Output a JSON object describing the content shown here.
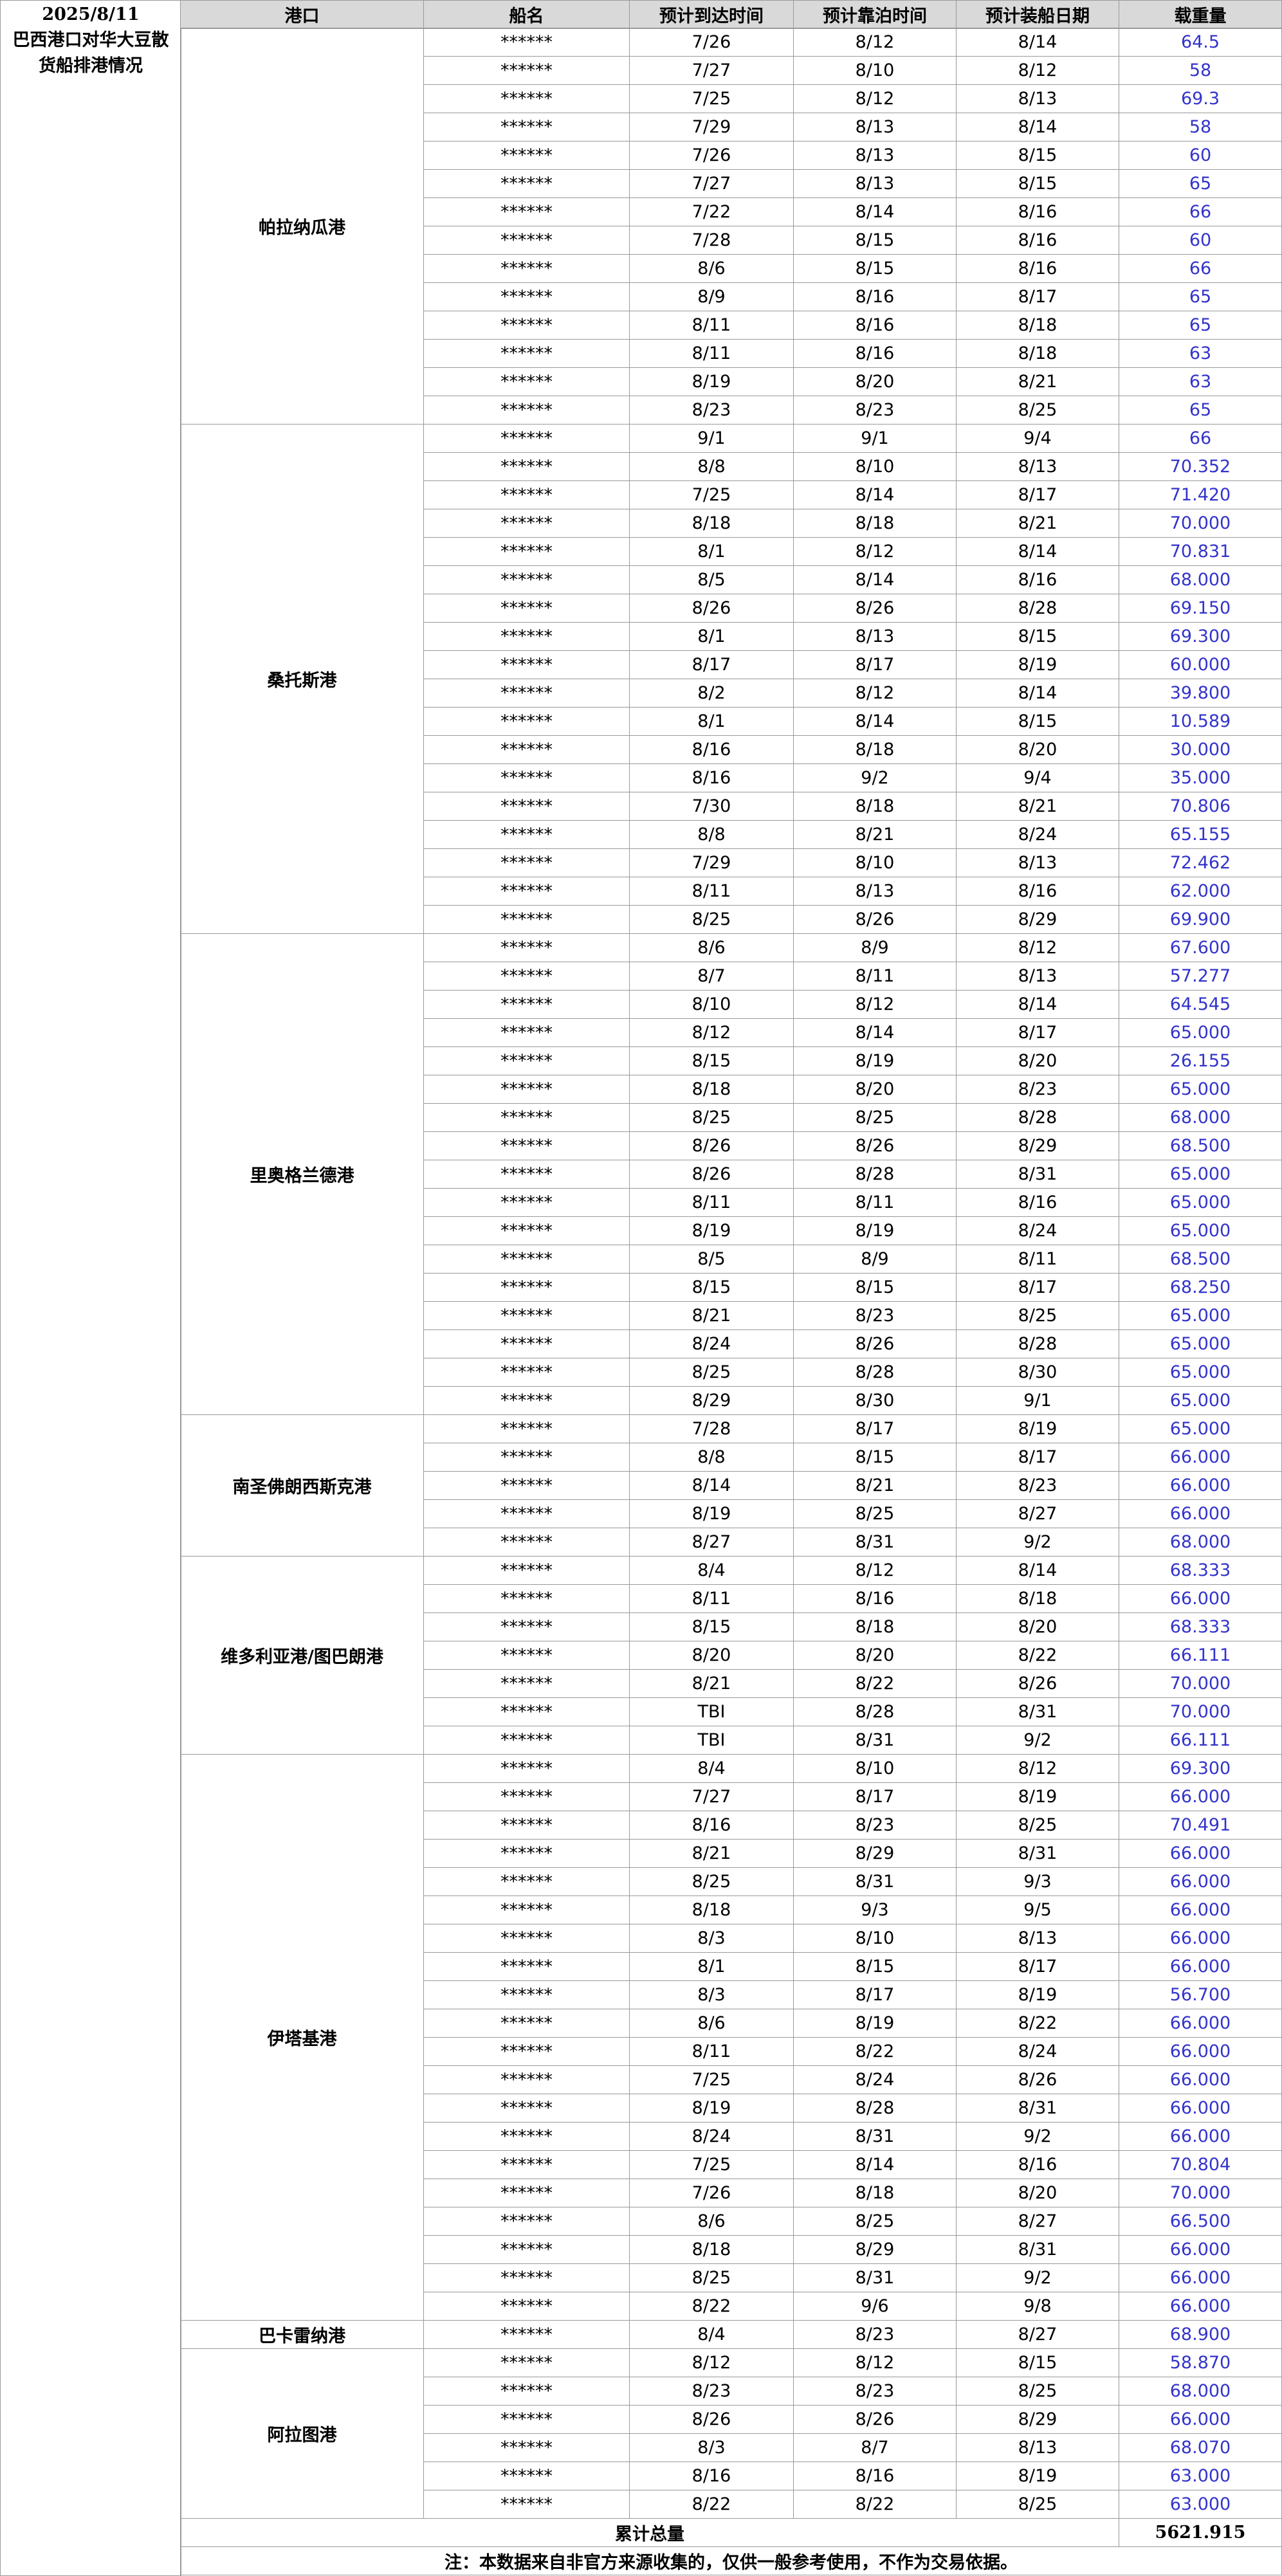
{
  "header": {
    "date": "2025/8/11",
    "title": "巴西港口对华大豆散货船排港情况"
  },
  "table": {
    "columns": [
      "港口",
      "船名",
      "预计到达时间",
      "预计靠泊时间",
      "预计装船日期",
      "载重量"
    ],
    "groups": [
      {
        "port": "帕拉纳瓜港",
        "rows": [
          [
            "******",
            "7/26",
            "8/12",
            "8/14",
            "64.5"
          ],
          [
            "******",
            "7/27",
            "8/10",
            "8/12",
            "58"
          ],
          [
            "******",
            "7/25",
            "8/12",
            "8/13",
            "69.3"
          ],
          [
            "******",
            "7/29",
            "8/13",
            "8/14",
            "58"
          ],
          [
            "******",
            "7/26",
            "8/13",
            "8/15",
            "60"
          ],
          [
            "******",
            "7/27",
            "8/13",
            "8/15",
            "65"
          ],
          [
            "******",
            "7/22",
            "8/14",
            "8/16",
            "66"
          ],
          [
            "******",
            "7/28",
            "8/15",
            "8/16",
            "60"
          ],
          [
            "******",
            "8/6",
            "8/15",
            "8/16",
            "66"
          ],
          [
            "******",
            "8/9",
            "8/16",
            "8/17",
            "65"
          ],
          [
            "******",
            "8/11",
            "8/16",
            "8/18",
            "65"
          ],
          [
            "******",
            "8/11",
            "8/16",
            "8/18",
            "63"
          ],
          [
            "******",
            "8/19",
            "8/20",
            "8/21",
            "63"
          ],
          [
            "******",
            "8/23",
            "8/23",
            "8/25",
            "65"
          ]
        ]
      },
      {
        "port": "桑托斯港",
        "rows": [
          [
            "******",
            "9/1",
            "9/1",
            "9/4",
            "66"
          ],
          [
            "******",
            "8/8",
            "8/10",
            "8/13",
            "70.352"
          ],
          [
            "******",
            "7/25",
            "8/14",
            "8/17",
            "71.420"
          ],
          [
            "******",
            "8/18",
            "8/18",
            "8/21",
            "70.000"
          ],
          [
            "******",
            "8/1",
            "8/12",
            "8/14",
            "70.831"
          ],
          [
            "******",
            "8/5",
            "8/14",
            "8/16",
            "68.000"
          ],
          [
            "******",
            "8/26",
            "8/26",
            "8/28",
            "69.150"
          ],
          [
            "******",
            "8/1",
            "8/13",
            "8/15",
            "69.300"
          ],
          [
            "******",
            "8/17",
            "8/17",
            "8/19",
            "60.000"
          ],
          [
            "******",
            "8/2",
            "8/12",
            "8/14",
            "39.800"
          ],
          [
            "******",
            "8/1",
            "8/14",
            "8/15",
            "10.589"
          ],
          [
            "******",
            "8/16",
            "8/18",
            "8/20",
            "30.000"
          ],
          [
            "******",
            "8/16",
            "9/2",
            "9/4",
            "35.000"
          ],
          [
            "******",
            "7/30",
            "8/18",
            "8/21",
            "70.806"
          ],
          [
            "******",
            "8/8",
            "8/21",
            "8/24",
            "65.155"
          ],
          [
            "******",
            "7/29",
            "8/10",
            "8/13",
            "72.462"
          ],
          [
            "******",
            "8/11",
            "8/13",
            "8/16",
            "62.000"
          ],
          [
            "******",
            "8/25",
            "8/26",
            "8/29",
            "69.900"
          ]
        ]
      },
      {
        "port": "里奥格兰德港",
        "rows": [
          [
            "******",
            "8/6",
            "8/9",
            "8/12",
            "67.600"
          ],
          [
            "******",
            "8/7",
            "8/11",
            "8/13",
            "57.277"
          ],
          [
            "******",
            "8/10",
            "8/12",
            "8/14",
            "64.545"
          ],
          [
            "******",
            "8/12",
            "8/14",
            "8/17",
            "65.000"
          ],
          [
            "******",
            "8/15",
            "8/19",
            "8/20",
            "26.155"
          ],
          [
            "******",
            "8/18",
            "8/20",
            "8/23",
            "65.000"
          ],
          [
            "******",
            "8/25",
            "8/25",
            "8/28",
            "68.000"
          ],
          [
            "******",
            "8/26",
            "8/26",
            "8/29",
            "68.500"
          ],
          [
            "******",
            "8/26",
            "8/28",
            "8/31",
            "65.000"
          ],
          [
            "******",
            "8/11",
            "8/11",
            "8/16",
            "65.000"
          ],
          [
            "******",
            "8/19",
            "8/19",
            "8/24",
            "65.000"
          ],
          [
            "******",
            "8/5",
            "8/9",
            "8/11",
            "68.500"
          ],
          [
            "******",
            "8/15",
            "8/15",
            "8/17",
            "68.250"
          ],
          [
            "******",
            "8/21",
            "8/23",
            "8/25",
            "65.000"
          ],
          [
            "******",
            "8/24",
            "8/26",
            "8/28",
            "65.000"
          ],
          [
            "******",
            "8/25",
            "8/28",
            "8/30",
            "65.000"
          ],
          [
            "******",
            "8/29",
            "8/30",
            "9/1",
            "65.000"
          ]
        ]
      },
      {
        "port": "南圣佛朗西斯克港",
        "rows": [
          [
            "******",
            "7/28",
            "8/17",
            "8/19",
            "65.000"
          ],
          [
            "******",
            "8/8",
            "8/15",
            "8/17",
            "66.000"
          ],
          [
            "******",
            "8/14",
            "8/21",
            "8/23",
            "66.000"
          ],
          [
            "******",
            "8/19",
            "8/25",
            "8/27",
            "66.000"
          ],
          [
            "******",
            "8/27",
            "8/31",
            "9/2",
            "68.000"
          ]
        ]
      },
      {
        "port": "维多利亚港/图巴朗港",
        "rows": [
          [
            "******",
            "8/4",
            "8/12",
            "8/14",
            "68.333"
          ],
          [
            "******",
            "8/11",
            "8/16",
            "8/18",
            "66.000"
          ],
          [
            "******",
            "8/15",
            "8/18",
            "8/20",
            "68.333"
          ],
          [
            "******",
            "8/20",
            "8/20",
            "8/22",
            "66.111"
          ],
          [
            "******",
            "8/21",
            "8/22",
            "8/26",
            "70.000"
          ],
          [
            "******",
            "TBI",
            "8/28",
            "8/31",
            "70.000"
          ],
          [
            "******",
            "TBI",
            "8/31",
            "9/2",
            "66.111"
          ]
        ]
      },
      {
        "port": "伊塔基港",
        "rows": [
          [
            "******",
            "8/4",
            "8/10",
            "8/12",
            "69.300"
          ],
          [
            "******",
            "7/27",
            "8/17",
            "8/19",
            "66.000"
          ],
          [
            "******",
            "8/16",
            "8/23",
            "8/25",
            "70.491"
          ],
          [
            "******",
            "8/21",
            "8/29",
            "8/31",
            "66.000"
          ],
          [
            "******",
            "8/25",
            "8/31",
            "9/3",
            "66.000"
          ],
          [
            "******",
            "8/18",
            "9/3",
            "9/5",
            "66.000"
          ],
          [
            "******",
            "8/3",
            "8/10",
            "8/13",
            "66.000"
          ],
          [
            "******",
            "8/1",
            "8/15",
            "8/17",
            "66.000"
          ],
          [
            "******",
            "8/3",
            "8/17",
            "8/19",
            "56.700"
          ],
          [
            "******",
            "8/6",
            "8/19",
            "8/22",
            "66.000"
          ],
          [
            "******",
            "8/11",
            "8/22",
            "8/24",
            "66.000"
          ],
          [
            "******",
            "7/25",
            "8/24",
            "8/26",
            "66.000"
          ],
          [
            "******",
            "8/19",
            "8/28",
            "8/31",
            "66.000"
          ],
          [
            "******",
            "8/24",
            "8/31",
            "9/2",
            "66.000"
          ],
          [
            "******",
            "7/25",
            "8/14",
            "8/16",
            "70.804"
          ],
          [
            "******",
            "7/26",
            "8/18",
            "8/20",
            "70.000"
          ],
          [
            "******",
            "8/6",
            "8/25",
            "8/27",
            "66.500"
          ],
          [
            "******",
            "8/18",
            "8/29",
            "8/31",
            "66.000"
          ],
          [
            "******",
            "8/25",
            "8/31",
            "9/2",
            "66.000"
          ],
          [
            "******",
            "8/22",
            "9/6",
            "9/8",
            "66.000"
          ]
        ]
      },
      {
        "port": "巴卡雷纳港",
        "rows": [
          [
            "******",
            "8/4",
            "8/23",
            "8/27",
            "68.900"
          ]
        ]
      },
      {
        "port": "阿拉图港",
        "rows": [
          [
            "******",
            "8/12",
            "8/12",
            "8/15",
            "58.870"
          ],
          [
            "******",
            "8/23",
            "8/23",
            "8/25",
            "68.000"
          ],
          [
            "******",
            "8/26",
            "8/26",
            "8/29",
            "66.000"
          ],
          [
            "******",
            "8/3",
            "8/7",
            "8/13",
            "68.070"
          ],
          [
            "******",
            "8/16",
            "8/16",
            "8/19",
            "63.000"
          ],
          [
            "******",
            "8/22",
            "8/22",
            "8/25",
            "63.000"
          ]
        ]
      }
    ],
    "total_label": "累计总量",
    "total_value": "5621.915",
    "note": "注：本数据来自非官方来源收集的，仅供一般参考使用，不作为交易依据。"
  }
}
